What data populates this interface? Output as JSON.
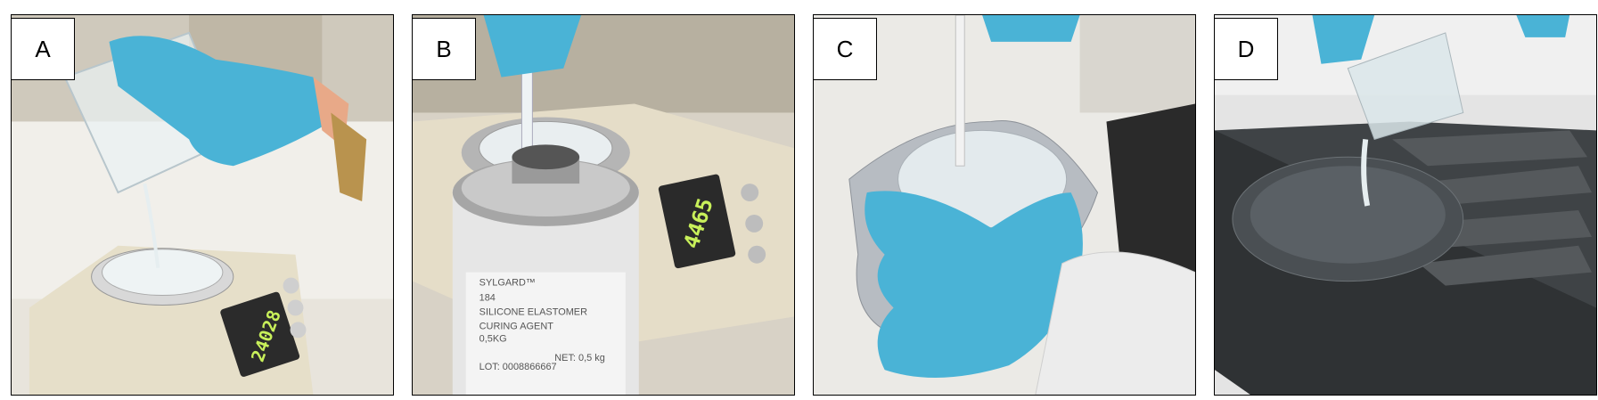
{
  "panels": [
    {
      "label": "A",
      "scale_reading": "24028"
    },
    {
      "label": "B",
      "scale_reading": "4465",
      "can": {
        "brand": "SYLGARD™",
        "number": "184",
        "line1": "SILICONE ELASTOMER",
        "line2": "CURING AGENT",
        "weight": "0,5KG",
        "net": "NET: 0,5  kg",
        "lot": "LOT: 0008866667"
      }
    },
    {
      "label": "C"
    },
    {
      "label": "D"
    }
  ],
  "colors": {
    "glove": "#4ab3d6",
    "lcd_text": "#c8f05a",
    "frame": "#000000"
  }
}
